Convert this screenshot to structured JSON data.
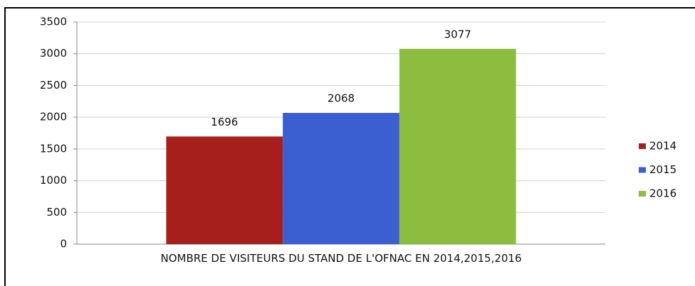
{
  "chart_data": {
    "type": "bar",
    "categories": [
      "NOMBRE DE VISITEURS DU STAND DE L'OFNAC EN 2014,2015,2016"
    ],
    "series": [
      {
        "name": "2014",
        "color": "#a61f1c",
        "values": [
          1696
        ]
      },
      {
        "name": "2015",
        "color": "#3b5fd0",
        "values": [
          2068
        ]
      },
      {
        "name": "2016",
        "color": "#8cbd3f",
        "values": [
          3077
        ]
      }
    ],
    "ylim": [
      0,
      3500
    ],
    "yticks": [
      0,
      500,
      1000,
      1500,
      2000,
      2500,
      3000,
      3500
    ],
    "grid": true,
    "legend": "right"
  }
}
